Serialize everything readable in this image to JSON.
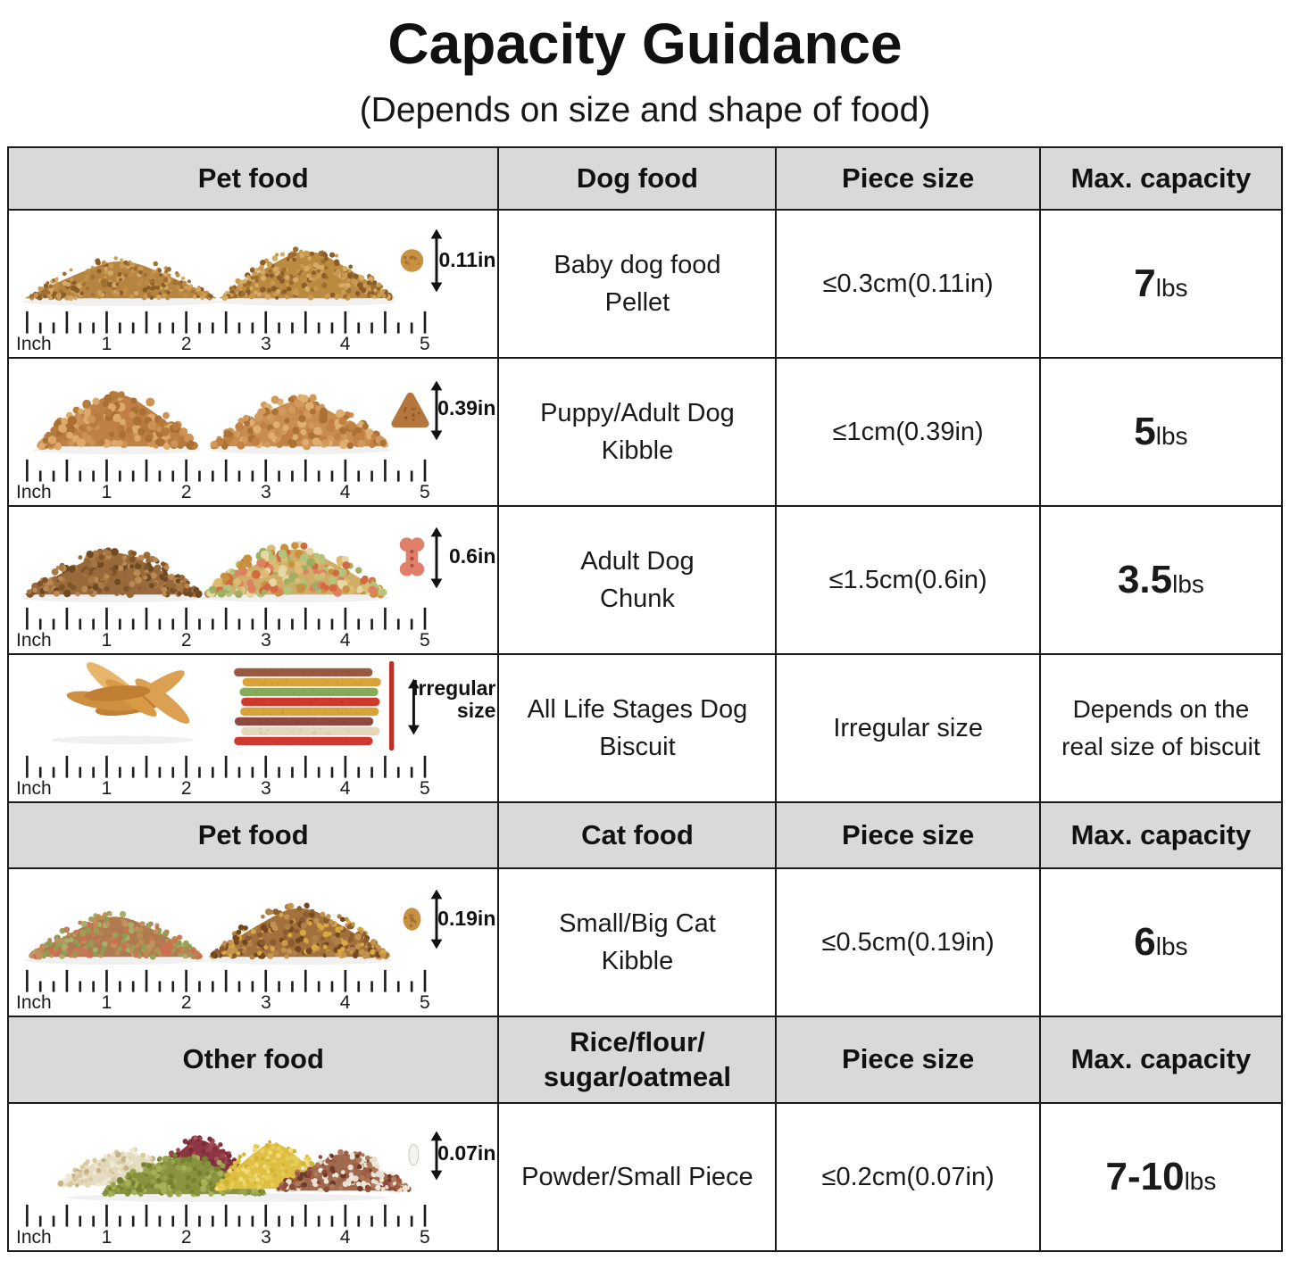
{
  "page": {
    "title": "Capacity Guidance",
    "subtitle": "(Depends on size and shape of food)"
  },
  "colors": {
    "header_bg": "#d9d9d9",
    "table_border": "#1a1a1a",
    "text": "#1a1a1a"
  },
  "ruler": {
    "unit_label": "Inch",
    "marks": [
      "1",
      "2",
      "3",
      "4",
      "5"
    ]
  },
  "headers": [
    {
      "food_group": "Pet food",
      "food_type": "Dog food",
      "piece_size": "Piece size",
      "capacity": "Max. capacity"
    },
    {
      "food_group": "Pet food",
      "food_type": "Cat food",
      "piece_size": "Piece size",
      "capacity": "Max. capacity"
    },
    {
      "food_group": "Other food",
      "food_type": "Rice/flour/\nsugar/oatmeal",
      "piece_size": "Piece size",
      "capacity": "Max. capacity"
    }
  ],
  "rows": [
    {
      "illustration": "baby-pellet-piles",
      "measure_label": "0.11in",
      "food_name": "Baby dog food\nPellet",
      "piece_size": "≤0.3cm(0.11in)",
      "capacity_value": "7",
      "capacity_unit": "lbs"
    },
    {
      "illustration": "dog-kibble-piles",
      "measure_label": "0.39in",
      "food_name": "Puppy/Adult Dog\nKibble",
      "piece_size": "≤1cm(0.39in)",
      "capacity_value": "5",
      "capacity_unit": "lbs"
    },
    {
      "illustration": "dog-chunk-piles",
      "measure_label": "0.6in",
      "food_name": "Adult Dog\nChunk",
      "piece_size": "≤1.5cm(0.6in)",
      "capacity_value": "3.5",
      "capacity_unit": "lbs"
    },
    {
      "illustration": "dog-biscuit-sticks",
      "measure_label": "lrregular\nsize",
      "food_name": "All Life Stages Dog\nBiscuit",
      "piece_size": "Irregular size",
      "capacity_text": "Depends on the\nreal size of biscuit"
    },
    {
      "illustration": "cat-kibble-piles",
      "measure_label": "0.19in",
      "food_name": "Small/Big Cat\nKibble",
      "piece_size": "≤0.5cm(0.19in)",
      "capacity_value": "6",
      "capacity_unit": "lbs"
    },
    {
      "illustration": "grain-piles",
      "measure_label": "0.07in",
      "food_name": "Powder/Small Piece",
      "piece_size": "≤0.2cm(0.07in)",
      "capacity_value": "7-10",
      "capacity_unit": "lbs"
    }
  ]
}
